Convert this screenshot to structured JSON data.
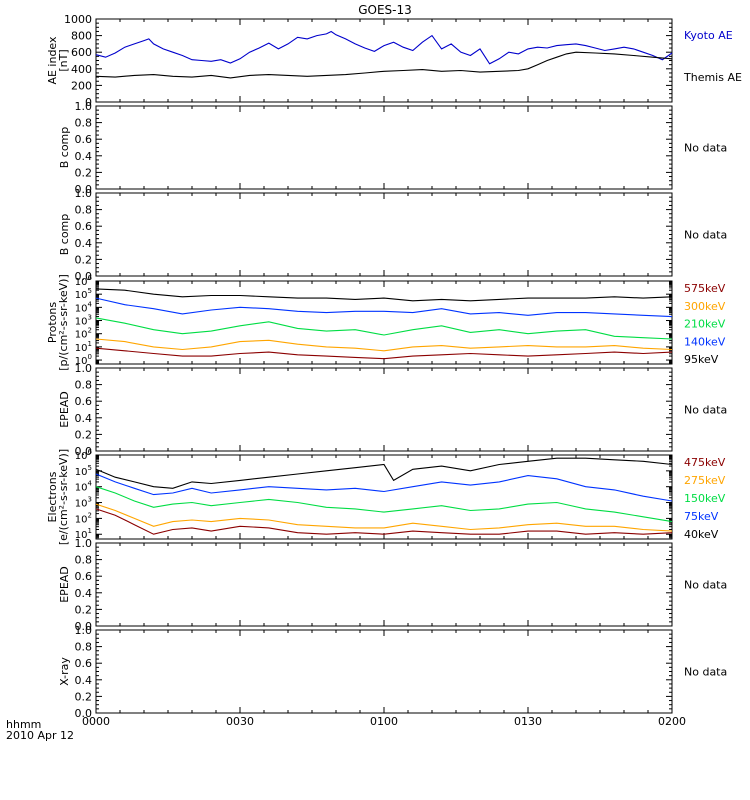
{
  "chart_data": {
    "type": "line",
    "title": "GOES-13",
    "xaxis": {
      "label_top": "hhmm",
      "label_bottom": "2010 Apr 12",
      "ticks": [
        "0000",
        "0030",
        "0100",
        "0130",
        "0200"
      ],
      "range_minutes": [
        0,
        120
      ]
    },
    "panels": [
      {
        "id": "ae",
        "ylabel": [
          "AE index",
          "[nT]"
        ],
        "ylim": [
          0,
          1000
        ],
        "yscale": "linear",
        "yticks": [
          "0",
          "200",
          "400",
          "600",
          "800",
          "1000"
        ],
        "series": [
          {
            "name": "Kyoto AE",
            "color": "#0000cc",
            "x": [
              0,
              2,
              4,
              6,
              8,
              10,
              11,
              12,
              14,
              16,
              18,
              20,
              22,
              24,
              26,
              28,
              30,
              32,
              34,
              36,
              38,
              40,
              42,
              44,
              46,
              48,
              49,
              50,
              52,
              54,
              56,
              58,
              60,
              62,
              64,
              66,
              68,
              70,
              72,
              74,
              76,
              78,
              80,
              82,
              84,
              86,
              88,
              90,
              92,
              94,
              96,
              98,
              100,
              102,
              104,
              106,
              108,
              110,
              112,
              114,
              116,
              118,
              120
            ],
            "y": [
              570,
              540,
              590,
              660,
              700,
              740,
              760,
              700,
              640,
              600,
              560,
              510,
              500,
              490,
              510,
              470,
              520,
              600,
              650,
              710,
              640,
              700,
              780,
              760,
              800,
              820,
              850,
              810,
              760,
              700,
              650,
              610,
              680,
              720,
              660,
              620,
              720,
              800,
              640,
              700,
              600,
              560,
              640,
              460,
              520,
              600,
              580,
              640,
              660,
              650,
              680,
              690,
              700,
              680,
              650,
              620,
              640,
              660,
              640,
              600,
              560,
              510,
              590
            ]
          },
          {
            "name": "Themis AE",
            "color": "#000000",
            "x": [
              0,
              4,
              8,
              12,
              16,
              20,
              24,
              28,
              32,
              36,
              40,
              44,
              48,
              52,
              56,
              60,
              64,
              68,
              72,
              76,
              80,
              84,
              88,
              90,
              92,
              94,
              96,
              98,
              100,
              104,
              108,
              112,
              116,
              120
            ],
            "y": [
              310,
              300,
              320,
              330,
              310,
              300,
              320,
              290,
              320,
              330,
              320,
              310,
              320,
              330,
              350,
              370,
              380,
              390,
              370,
              380,
              360,
              370,
              380,
              400,
              450,
              500,
              540,
              580,
              600,
              590,
              580,
              560,
              540,
              520
            ]
          }
        ],
        "no_data": false
      },
      {
        "id": "b1",
        "ylabel": [
          "B comp"
        ],
        "ylim": [
          0,
          1
        ],
        "yticks": [
          "0.0",
          "0.2",
          "0.4",
          "0.6",
          "0.8",
          "1.0"
        ],
        "series": [],
        "no_data": true,
        "note": "No data"
      },
      {
        "id": "b2",
        "ylabel": [
          "B comp"
        ],
        "ylim": [
          0,
          1
        ],
        "yticks": [
          "0.0",
          "0.2",
          "0.4",
          "0.6",
          "0.8",
          "1.0"
        ],
        "series": [],
        "no_data": true,
        "note": "No data"
      },
      {
        "id": "protons",
        "ylabel": [
          "Protons",
          "[p/(cm²-s-sr-keV)]"
        ],
        "ylim_log10": [
          -0.3,
          6
        ],
        "yscale": "log",
        "ytick_exponents": [
          0,
          1,
          2,
          3,
          4,
          5,
          6
        ],
        "series": [
          {
            "name": "575keV",
            "color": "#8b0000",
            "x": [
              0,
              6,
              12,
              18,
              24,
              30,
              36,
              42,
              48,
              54,
              60,
              66,
              72,
              78,
              84,
              90,
              96,
              102,
              108,
              114,
              120
            ],
            "y_log10": [
              0.9,
              0.7,
              0.5,
              0.3,
              0.3,
              0.5,
              0.6,
              0.4,
              0.3,
              0.2,
              0.1,
              0.3,
              0.4,
              0.5,
              0.4,
              0.3,
              0.4,
              0.5,
              0.6,
              0.5,
              0.6
            ]
          },
          {
            "name": "300keV",
            "color": "#ffa500",
            "x": [
              0,
              6,
              12,
              18,
              24,
              30,
              36,
              42,
              48,
              54,
              60,
              66,
              72,
              78,
              84,
              90,
              96,
              102,
              108,
              114,
              120
            ],
            "y_log10": [
              1.6,
              1.4,
              1.0,
              0.8,
              1.0,
              1.4,
              1.5,
              1.2,
              1.0,
              0.9,
              0.7,
              1.0,
              1.1,
              0.9,
              1.0,
              1.1,
              1.0,
              1.0,
              1.1,
              0.9,
              0.8
            ]
          },
          {
            "name": "210keV",
            "color": "#00dd44",
            "x": [
              0,
              6,
              12,
              18,
              24,
              30,
              36,
              42,
              48,
              54,
              60,
              66,
              72,
              78,
              84,
              90,
              96,
              102,
              108,
              114,
              120
            ],
            "y_log10": [
              3.2,
              2.8,
              2.3,
              2.0,
              2.2,
              2.6,
              2.9,
              2.4,
              2.2,
              2.3,
              1.9,
              2.3,
              2.6,
              2.1,
              2.3,
              2.0,
              2.2,
              2.3,
              1.8,
              1.7,
              1.6
            ]
          },
          {
            "name": "140keV",
            "color": "#0033ff",
            "x": [
              0,
              6,
              12,
              18,
              24,
              30,
              36,
              42,
              48,
              54,
              60,
              66,
              72,
              78,
              84,
              90,
              96,
              102,
              108,
              114,
              120
            ],
            "y_log10": [
              4.7,
              4.2,
              3.9,
              3.5,
              3.8,
              4.0,
              3.9,
              3.7,
              3.6,
              3.7,
              3.7,
              3.6,
              3.9,
              3.5,
              3.6,
              3.4,
              3.6,
              3.6,
              3.5,
              3.4,
              3.3
            ]
          },
          {
            "name": "95keV",
            "color": "#000000",
            "x": [
              0,
              6,
              12,
              18,
              24,
              30,
              36,
              42,
              48,
              54,
              60,
              66,
              72,
              78,
              84,
              90,
              96,
              102,
              108,
              114,
              120
            ],
            "y_log10": [
              5.4,
              5.3,
              5.0,
              4.8,
              4.9,
              4.9,
              4.8,
              4.7,
              4.7,
              4.6,
              4.7,
              4.5,
              4.6,
              4.5,
              4.6,
              4.7,
              4.7,
              4.7,
              4.8,
              4.7,
              4.8
            ]
          }
        ],
        "legend_order": [
          "575keV",
          "300keV",
          "210keV",
          "140keV",
          "95keV"
        ],
        "no_data": false
      },
      {
        "id": "epead1",
        "ylabel": [
          "EPEAD"
        ],
        "ylim": [
          0,
          1
        ],
        "yticks": [
          "0.0",
          "0.2",
          "0.4",
          "0.6",
          "0.8",
          "1.0"
        ],
        "series": [],
        "no_data": true,
        "note": "No data"
      },
      {
        "id": "electrons",
        "ylabel": [
          "Electrons",
          "[e/(cm²-s-sr-keV)]"
        ],
        "ylim_log10": [
          0.7,
          6
        ],
        "yscale": "log",
        "ytick_exponents": [
          1,
          2,
          3,
          4,
          5,
          6
        ],
        "series": [
          {
            "name": "475keV",
            "color": "#8b0000",
            "x": [
              0,
              4,
              8,
              12,
              16,
              20,
              24,
              30,
              36,
              42,
              48,
              54,
              60,
              66,
              72,
              78,
              84,
              90,
              96,
              102,
              108,
              114,
              120
            ],
            "y_log10": [
              2.6,
              2.2,
              1.6,
              1.0,
              1.3,
              1.4,
              1.2,
              1.5,
              1.4,
              1.1,
              1.0,
              1.1,
              1.0,
              1.2,
              1.1,
              1.0,
              1.0,
              1.2,
              1.2,
              1.0,
              1.1,
              1.0,
              1.1
            ]
          },
          {
            "name": "275keV",
            "color": "#ffa500",
            "x": [
              0,
              4,
              8,
              12,
              16,
              20,
              24,
              30,
              36,
              42,
              48,
              54,
              60,
              66,
              72,
              78,
              84,
              90,
              96,
              102,
              108,
              114,
              120
            ],
            "y_log10": [
              2.9,
              2.5,
              2.0,
              1.5,
              1.8,
              1.9,
              1.8,
              2.0,
              1.9,
              1.6,
              1.5,
              1.4,
              1.4,
              1.7,
              1.5,
              1.3,
              1.4,
              1.6,
              1.7,
              1.5,
              1.5,
              1.3,
              1.2
            ]
          },
          {
            "name": "150keV",
            "color": "#00dd44",
            "x": [
              0,
              4,
              8,
              12,
              16,
              20,
              24,
              30,
              36,
              42,
              48,
              54,
              60,
              66,
              72,
              78,
              84,
              90,
              96,
              102,
              108,
              114,
              120
            ],
            "y_log10": [
              4.0,
              3.6,
              3.1,
              2.7,
              2.9,
              3.0,
              2.8,
              3.0,
              3.2,
              3.0,
              2.7,
              2.6,
              2.4,
              2.6,
              2.8,
              2.5,
              2.6,
              2.9,
              3.0,
              2.6,
              2.4,
              2.1,
              1.8
            ]
          },
          {
            "name": "75keV",
            "color": "#0033ff",
            "x": [
              0,
              4,
              8,
              12,
              16,
              20,
              24,
              30,
              36,
              42,
              48,
              54,
              60,
              66,
              72,
              78,
              84,
              90,
              96,
              102,
              108,
              114,
              120
            ],
            "y_log10": [
              4.8,
              4.3,
              3.9,
              3.5,
              3.6,
              3.9,
              3.6,
              3.8,
              4.0,
              3.9,
              3.8,
              3.9,
              3.7,
              4.0,
              4.3,
              4.1,
              4.3,
              4.7,
              4.5,
              4.0,
              3.8,
              3.4,
              3.1
            ]
          },
          {
            "name": "40keV",
            "color": "#000000",
            "x": [
              0,
              4,
              8,
              12,
              16,
              20,
              24,
              30,
              36,
              42,
              48,
              54,
              60,
              62,
              66,
              72,
              78,
              84,
              90,
              96,
              102,
              108,
              114,
              120
            ],
            "y_log10": [
              5.1,
              4.6,
              4.3,
              4.0,
              3.9,
              4.3,
              4.2,
              4.4,
              4.6,
              4.8,
              5.0,
              5.2,
              5.4,
              4.4,
              5.1,
              5.3,
              5.0,
              5.4,
              5.6,
              5.8,
              5.8,
              5.7,
              5.6,
              5.4
            ]
          }
        ],
        "legend_order": [
          "475keV",
          "275keV",
          "150keV",
          "75keV",
          "40keV"
        ],
        "no_data": false
      },
      {
        "id": "epead2",
        "ylabel": [
          "EPEAD"
        ],
        "ylim": [
          0,
          1
        ],
        "yticks": [
          "0.0",
          "0.2",
          "0.4",
          "0.6",
          "0.8",
          "1.0"
        ],
        "series": [],
        "no_data": true,
        "note": "No data"
      },
      {
        "id": "xray",
        "ylabel": [
          "X-ray"
        ],
        "ylim": [
          0,
          1
        ],
        "yticks": [
          "0.0",
          "0.2",
          "0.4",
          "0.6",
          "0.8",
          "1.0"
        ],
        "series": [],
        "no_data": true,
        "note": "No data"
      }
    ]
  }
}
